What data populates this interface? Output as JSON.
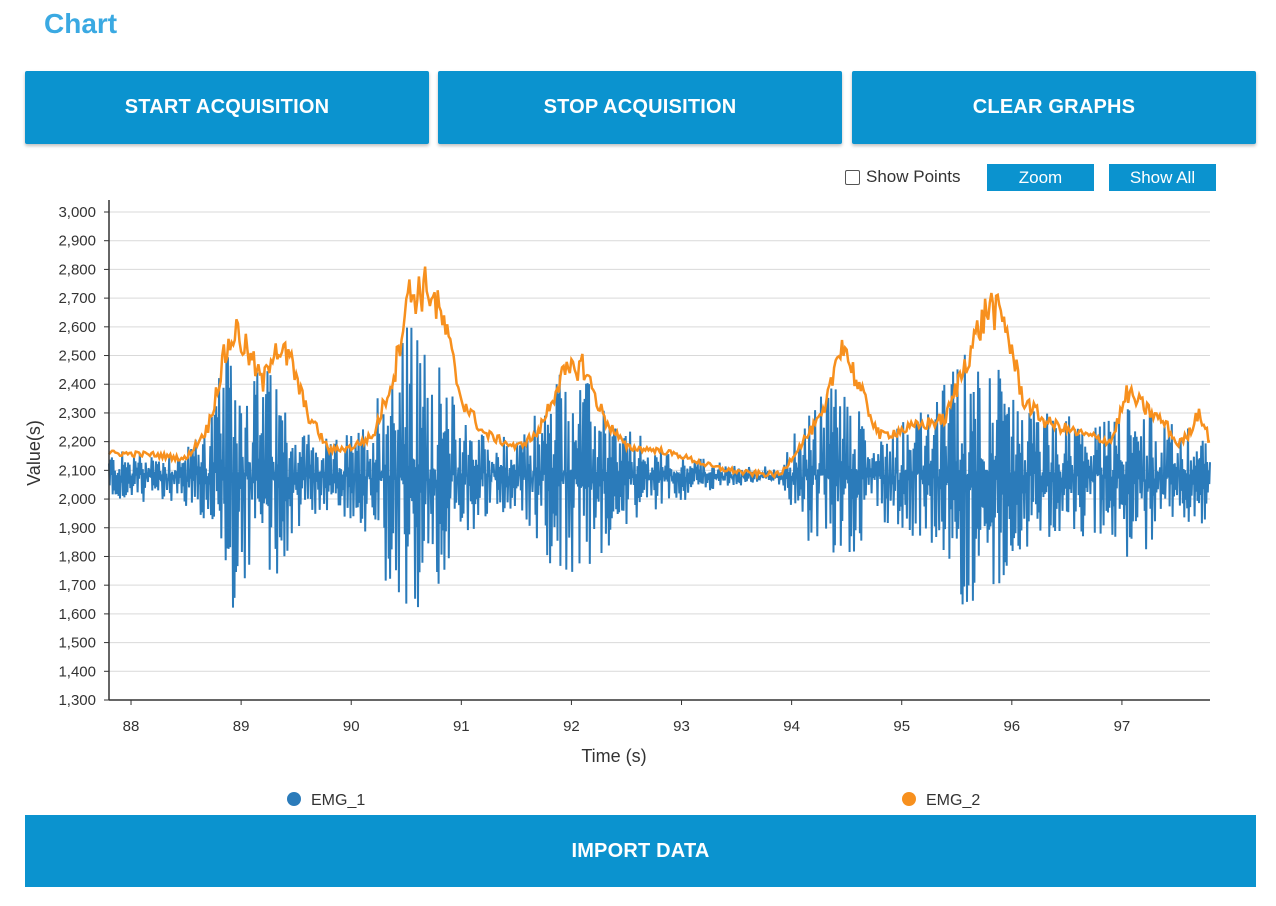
{
  "page": {
    "title": "Chart"
  },
  "buttons": {
    "start": "START ACQUISITION",
    "stop": "STOP ACQUISITION",
    "clear": "CLEAR GRAPHS",
    "import": "IMPORT DATA"
  },
  "toolbar": {
    "show_points_label": "Show Points",
    "show_points_checked": false,
    "zoom_label": "Zoom",
    "show_all_label": "Show All"
  },
  "colors": {
    "title": "#3aa9e2",
    "button": "#0b93cf",
    "emg1": "#2b7bba",
    "emg2": "#f7901e"
  },
  "chart_data": {
    "type": "line",
    "xlabel": "Time (s)",
    "ylabel": "Value(s)",
    "xlim": [
      87.8,
      97.8
    ],
    "ylim": [
      1300,
      3000
    ],
    "xticks": [
      88,
      89,
      90,
      91,
      92,
      93,
      94,
      95,
      96,
      97
    ],
    "yticks": [
      1300,
      1400,
      1500,
      1600,
      1700,
      1800,
      1900,
      2000,
      2100,
      2200,
      2300,
      2400,
      2500,
      2600,
      2700,
      2800,
      2900,
      3000
    ],
    "ytick_labels": [
      "1,300",
      "1,400",
      "1,500",
      "1,600",
      "1,700",
      "1,800",
      "1,900",
      "2,000",
      "2,100",
      "2,200",
      "2,300",
      "2,400",
      "2,500",
      "2,600",
      "2,700",
      "2,800",
      "2,900",
      "3,000"
    ],
    "grid": true,
    "legend_position": "bottom",
    "series": [
      {
        "name": "EMG_1",
        "color": "#2b7bba",
        "baseline": 2080,
        "envelope": [
          [
            87.8,
            90
          ],
          [
            88.4,
            90
          ],
          [
            88.6,
            140
          ],
          [
            88.8,
            350
          ],
          [
            88.95,
            480
          ],
          [
            89.1,
            400
          ],
          [
            89.3,
            380
          ],
          [
            89.5,
            200
          ],
          [
            89.8,
            110
          ],
          [
            90.1,
            180
          ],
          [
            90.3,
            400
          ],
          [
            90.5,
            560
          ],
          [
            90.7,
            460
          ],
          [
            90.9,
            300
          ],
          [
            91.2,
            160
          ],
          [
            91.5,
            110
          ],
          [
            91.7,
            250
          ],
          [
            91.9,
            400
          ],
          [
            92.1,
            360
          ],
          [
            92.4,
            200
          ],
          [
            92.7,
            110
          ],
          [
            93.0,
            80
          ],
          [
            93.3,
            45
          ],
          [
            93.6,
            25
          ],
          [
            93.9,
            20
          ],
          [
            94.0,
            130
          ],
          [
            94.2,
            250
          ],
          [
            94.4,
            380
          ],
          [
            94.6,
            260
          ],
          [
            94.8,
            150
          ],
          [
            95.0,
            220
          ],
          [
            95.3,
            260
          ],
          [
            95.6,
            480
          ],
          [
            95.8,
            450
          ],
          [
            96.0,
            280
          ],
          [
            96.3,
            230
          ],
          [
            96.6,
            200
          ],
          [
            96.9,
            190
          ],
          [
            97.1,
            300
          ],
          [
            97.3,
            220
          ],
          [
            97.5,
            180
          ],
          [
            97.8,
            160
          ]
        ]
      },
      {
        "name": "EMG_2",
        "color": "#f7901e",
        "profile": [
          [
            87.8,
            2160
          ],
          [
            88.2,
            2155
          ],
          [
            88.5,
            2140
          ],
          [
            88.7,
            2250
          ],
          [
            88.85,
            2500
          ],
          [
            88.95,
            2590
          ],
          [
            89.1,
            2480
          ],
          [
            89.2,
            2400
          ],
          [
            89.3,
            2540
          ],
          [
            89.45,
            2480
          ],
          [
            89.6,
            2300
          ],
          [
            89.8,
            2170
          ],
          [
            90.0,
            2180
          ],
          [
            90.2,
            2220
          ],
          [
            90.4,
            2450
          ],
          [
            90.5,
            2700
          ],
          [
            90.7,
            2740
          ],
          [
            90.85,
            2600
          ],
          [
            91.0,
            2350
          ],
          [
            91.2,
            2230
          ],
          [
            91.5,
            2180
          ],
          [
            91.7,
            2230
          ],
          [
            91.9,
            2420
          ],
          [
            92.1,
            2470
          ],
          [
            92.3,
            2280
          ],
          [
            92.5,
            2180
          ],
          [
            92.8,
            2170
          ],
          [
            93.0,
            2150
          ],
          [
            93.3,
            2110
          ],
          [
            93.6,
            2090
          ],
          [
            93.9,
            2085
          ],
          [
            94.1,
            2200
          ],
          [
            94.3,
            2300
          ],
          [
            94.45,
            2560
          ],
          [
            94.6,
            2400
          ],
          [
            94.8,
            2220
          ],
          [
            95.0,
            2240
          ],
          [
            95.2,
            2260
          ],
          [
            95.4,
            2280
          ],
          [
            95.6,
            2500
          ],
          [
            95.8,
            2680
          ],
          [
            95.95,
            2600
          ],
          [
            96.1,
            2350
          ],
          [
            96.3,
            2270
          ],
          [
            96.6,
            2230
          ],
          [
            96.9,
            2200
          ],
          [
            97.05,
            2370
          ],
          [
            97.2,
            2320
          ],
          [
            97.4,
            2260
          ],
          [
            97.5,
            2190
          ],
          [
            97.6,
            2220
          ],
          [
            97.7,
            2310
          ],
          [
            97.8,
            2200
          ]
        ]
      }
    ]
  }
}
